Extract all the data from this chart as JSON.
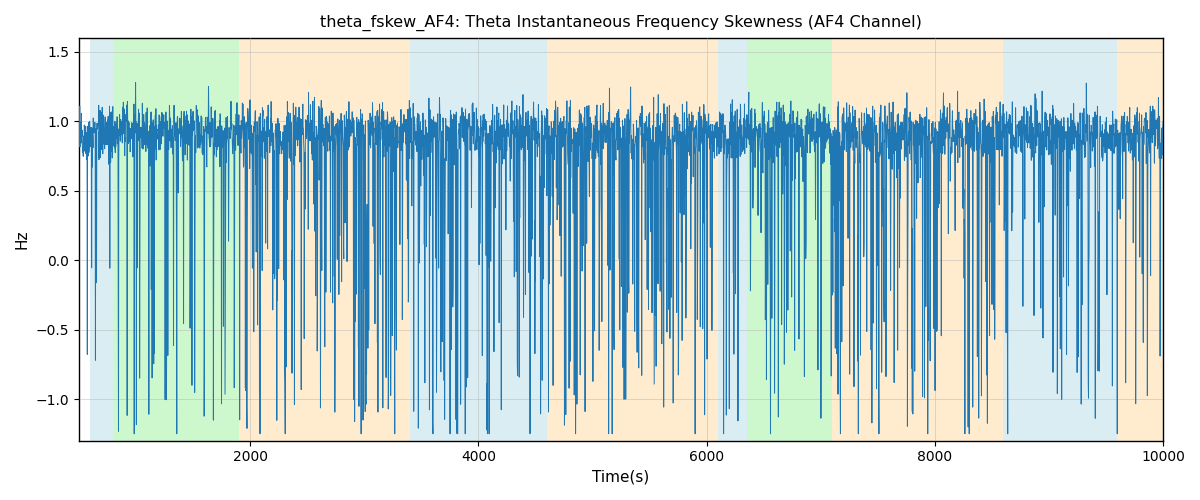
{
  "title": "theta_fskew_AF4: Theta Instantaneous Frequency Skewness (AF4 Channel)",
  "xlabel": "Time(s)",
  "ylabel": "Hz",
  "xlim": [
    500,
    10000
  ],
  "ylim": [
    -1.3,
    1.6
  ],
  "line_color": "#1f77b4",
  "line_width": 0.7,
  "background_regions": [
    {
      "xmin": 600,
      "xmax": 800,
      "color": "#add8e6",
      "alpha": 0.45
    },
    {
      "xmin": 800,
      "xmax": 1900,
      "color": "#90ee90",
      "alpha": 0.45
    },
    {
      "xmin": 1900,
      "xmax": 3400,
      "color": "#ffdaa0",
      "alpha": 0.5
    },
    {
      "xmin": 3400,
      "xmax": 4600,
      "color": "#add8e6",
      "alpha": 0.45
    },
    {
      "xmin": 4600,
      "xmax": 6100,
      "color": "#ffdaa0",
      "alpha": 0.5
    },
    {
      "xmin": 6100,
      "xmax": 6350,
      "color": "#add8e6",
      "alpha": 0.45
    },
    {
      "xmin": 6350,
      "xmax": 7100,
      "color": "#90ee90",
      "alpha": 0.45
    },
    {
      "xmin": 7100,
      "xmax": 8600,
      "color": "#ffdaa0",
      "alpha": 0.5
    },
    {
      "xmin": 8600,
      "xmax": 9600,
      "color": "#add8e6",
      "alpha": 0.45
    },
    {
      "xmin": 9600,
      "xmax": 10000,
      "color": "#ffdaa0",
      "alpha": 0.5
    }
  ],
  "yticks": [
    -1.0,
    -0.5,
    0.0,
    0.5,
    1.0,
    1.5
  ],
  "xticks": [
    2000,
    4000,
    6000,
    8000,
    10000
  ],
  "grid_color": "#b0b0b0",
  "grid_alpha": 0.5,
  "seed": 42,
  "n_points": 4000
}
